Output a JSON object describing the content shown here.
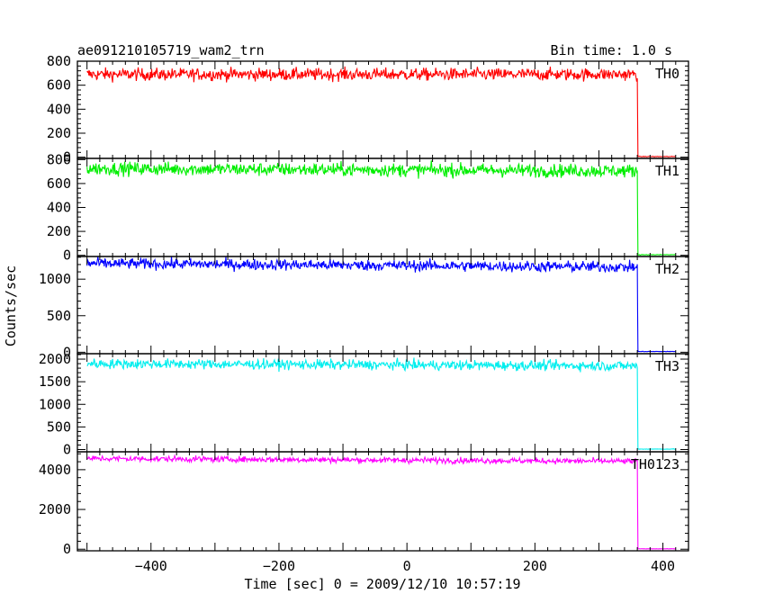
{
  "header": {
    "title": "ae091210105719_wam2_trn",
    "bin_time": "Bin time: 1.0 s"
  },
  "axes": {
    "xlabel": "Time [sec] 0 = 2009/12/10 10:57:19",
    "ylabel": "Counts/sec",
    "xlim": [
      -515,
      440
    ],
    "xticks": [
      -400,
      -200,
      0,
      200,
      400
    ]
  },
  "colors": {
    "frame": "#000000",
    "background": "#ffffff"
  },
  "chart_data": {
    "type": "line",
    "x_step": 1.0,
    "x_range_on": [
      -500,
      360
    ],
    "x_range_off": [
      361,
      420
    ],
    "series": [
      {
        "name": "TH0",
        "color": "#ff0000",
        "ylim": [
          -10,
          800
        ],
        "yticks": [
          0,
          200,
          400,
          600,
          800
        ],
        "level_start": 690,
        "level_end": 690,
        "noise": 26,
        "off_level": 5
      },
      {
        "name": "TH1",
        "color": "#00ee00",
        "ylim": [
          -10,
          810
        ],
        "yticks": [
          0,
          200,
          400,
          600,
          800
        ],
        "level_start": 725,
        "level_end": 705,
        "noise": 28,
        "off_level": 5
      },
      {
        "name": "TH2",
        "color": "#0000ff",
        "ylim": [
          -20,
          1310
        ],
        "yticks": [
          0,
          500,
          1000
        ],
        "level_start": 1215,
        "level_end": 1165,
        "noise": 38,
        "off_level": 10
      },
      {
        "name": "TH3",
        "color": "#00eeee",
        "ylim": [
          -50,
          2120
        ],
        "yticks": [
          0,
          500,
          1000,
          1500,
          2000
        ],
        "level_start": 1900,
        "level_end": 1850,
        "noise": 55,
        "off_level": 10
      },
      {
        "name": "TH0123",
        "color": "#ff00ff",
        "ylim": [
          -80,
          4900
        ],
        "yticks": [
          0,
          2000,
          4000
        ],
        "level_start": 4560,
        "level_end": 4420,
        "noise": 75,
        "off_level": 20
      }
    ]
  }
}
